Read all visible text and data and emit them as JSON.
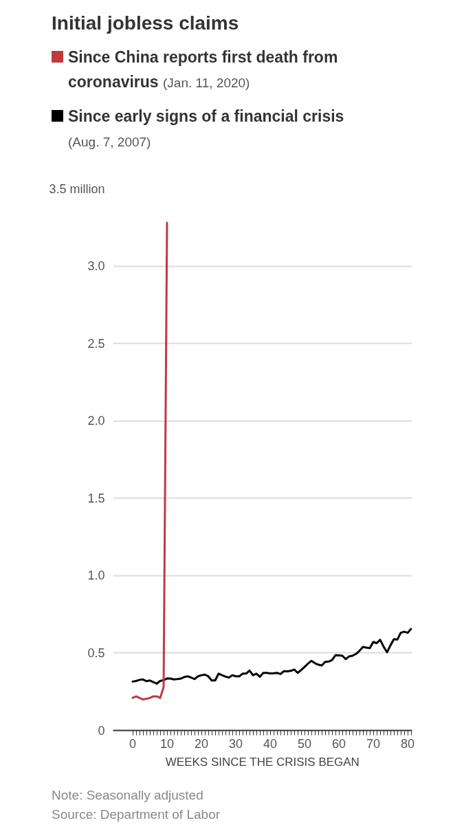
{
  "chart_data": {
    "type": "line",
    "title": "Initial jobless claims",
    "xlabel": "WEEKS SINCE THE CRISIS BEGAN",
    "annotations": [
      "Note: Seasonally adjusted",
      "Source: Department of Labor"
    ],
    "legend": "top",
    "grid": "y",
    "line_style": "solid",
    "xlim": [
      -5.7,
      81.3
    ],
    "ylim": [
      0,
      3.5
    ],
    "xticks": [
      0,
      {
        "value": 1,
        "label": null
      },
      {
        "value": 2,
        "label": null
      },
      {
        "value": 3,
        "label": null
      },
      {
        "value": 4,
        "label": null
      },
      {
        "value": 5,
        "label": null
      },
      {
        "value": 6,
        "label": null
      },
      {
        "value": 7,
        "label": null
      },
      {
        "value": 8,
        "label": null
      },
      {
        "value": 9,
        "label": null
      },
      10,
      {
        "value": 11,
        "label": null
      },
      {
        "value": 12,
        "label": null
      },
      {
        "value": 13,
        "label": null
      },
      {
        "value": 14,
        "label": null
      },
      {
        "value": 15,
        "label": null
      },
      {
        "value": 16,
        "label": null
      },
      {
        "value": 17,
        "label": null
      },
      {
        "value": 18,
        "label": null
      },
      {
        "value": 19,
        "label": null
      },
      20,
      {
        "value": 21,
        "label": null
      },
      {
        "value": 22,
        "label": null
      },
      {
        "value": 23,
        "label": null
      },
      {
        "value": 24,
        "label": null
      },
      {
        "value": 25,
        "label": null
      },
      {
        "value": 26,
        "label": null
      },
      {
        "value": 27,
        "label": null
      },
      {
        "value": 28,
        "label": null
      },
      {
        "value": 29,
        "label": null
      },
      30,
      {
        "value": 31,
        "label": null
      },
      {
        "value": 32,
        "label": null
      },
      {
        "value": 33,
        "label": null
      },
      {
        "value": 34,
        "label": null
      },
      {
        "value": 35,
        "label": null
      },
      {
        "value": 36,
        "label": null
      },
      {
        "value": 37,
        "label": null
      },
      {
        "value": 38,
        "label": null
      },
      {
        "value": 39,
        "label": null
      },
      40,
      {
        "value": 41,
        "label": null
      },
      {
        "value": 42,
        "label": null
      },
      {
        "value": 43,
        "label": null
      },
      {
        "value": 44,
        "label": null
      },
      {
        "value": 45,
        "label": null
      },
      {
        "value": 46,
        "label": null
      },
      {
        "value": 47,
        "label": null
      },
      {
        "value": 48,
        "label": null
      },
      {
        "value": 49,
        "label": null
      },
      50,
      {
        "value": 51,
        "label": null
      },
      {
        "value": 52,
        "label": null
      },
      {
        "value": 53,
        "label": null
      },
      {
        "value": 54,
        "label": null
      },
      {
        "value": 55,
        "label": null
      },
      {
        "value": 56,
        "label": null
      },
      {
        "value": 57,
        "label": null
      },
      {
        "value": 58,
        "label": null
      },
      {
        "value": 59,
        "label": null
      },
      60,
      {
        "value": 61,
        "label": null
      },
      {
        "value": 62,
        "label": null
      },
      {
        "value": 63,
        "label": null
      },
      {
        "value": 64,
        "label": null
      },
      {
        "value": 65,
        "label": null
      },
      {
        "value": 66,
        "label": null
      },
      {
        "value": 67,
        "label": null
      },
      {
        "value": 68,
        "label": null
      },
      {
        "value": 69,
        "label": null
      },
      70,
      {
        "value": 71,
        "label": null
      },
      {
        "value": 72,
        "label": null
      },
      {
        "value": 73,
        "label": null
      },
      {
        "value": 74,
        "label": null
      },
      {
        "value": 75,
        "label": null
      },
      {
        "value": 76,
        "label": null
      },
      {
        "value": 77,
        "label": null
      },
      {
        "value": 78,
        "label": null
      },
      {
        "value": 79,
        "label": null
      },
      80,
      {
        "value": 81,
        "label": null
      }
    ],
    "yticks": [
      0,
      0.5,
      {
        "value": 1,
        "label": "1.0"
      },
      1.5,
      {
        "value": 2,
        "label": "2.0"
      },
      2.5,
      {
        "value": 3,
        "label": "3.0"
      },
      {
        "value": 3.5,
        "label": "3.5 million"
      }
    ],
    "series": [
      {
        "name": "Since China reports first death from coronavirus (Jan. 11, 2020)",
        "color": "#c0393e",
        "x": [
          0,
          1,
          2,
          3,
          4,
          5,
          6,
          7,
          8,
          9,
          10
        ],
        "values": [
          0.21,
          0.22,
          0.21,
          0.2,
          0.205,
          0.21,
          0.22,
          0.22,
          0.21,
          0.28,
          3.28
        ]
      },
      {
        "name": "Since early signs of a financial crisis (Aug. 7, 2007)",
        "color": "#000000",
        "x": [
          0,
          1,
          2,
          3,
          4,
          5,
          6,
          7,
          8,
          9,
          10,
          11,
          12,
          13,
          14,
          15,
          16,
          17,
          18,
          19,
          20,
          21,
          22,
          23,
          24,
          25,
          26,
          27,
          28,
          29,
          30,
          31,
          32,
          33,
          34,
          35,
          36,
          37,
          38,
          39,
          40,
          41,
          42,
          43,
          44,
          45,
          46,
          47,
          48,
          49,
          50,
          51,
          52,
          53,
          54,
          55,
          56,
          57,
          58,
          59,
          60,
          61,
          62,
          63,
          64,
          65,
          66,
          67,
          68,
          69,
          70,
          71,
          72,
          73,
          74,
          75,
          76,
          77,
          78,
          79,
          80,
          81
        ],
        "values": [
          0.316,
          0.32,
          0.327,
          0.33,
          0.318,
          0.323,
          0.313,
          0.302,
          0.32,
          0.325,
          0.336,
          0.335,
          0.33,
          0.332,
          0.335,
          0.345,
          0.35,
          0.342,
          0.332,
          0.35,
          0.357,
          0.361,
          0.35,
          0.323,
          0.323,
          0.367,
          0.357,
          0.348,
          0.342,
          0.357,
          0.35,
          0.35,
          0.367,
          0.367,
          0.387,
          0.357,
          0.367,
          0.347,
          0.372,
          0.372,
          0.369,
          0.37,
          0.372,
          0.365,
          0.383,
          0.382,
          0.385,
          0.394,
          0.372,
          0.39,
          0.41,
          0.431,
          0.45,
          0.435,
          0.425,
          0.42,
          0.443,
          0.445,
          0.455,
          0.486,
          0.485,
          0.483,
          0.461,
          0.479,
          0.483,
          0.495,
          0.515,
          0.54,
          0.535,
          0.532,
          0.572,
          0.564,
          0.586,
          0.542,
          0.505,
          0.55,
          0.59,
          0.587,
          0.631,
          0.638,
          0.631,
          0.656
        ]
      }
    ]
  }
}
